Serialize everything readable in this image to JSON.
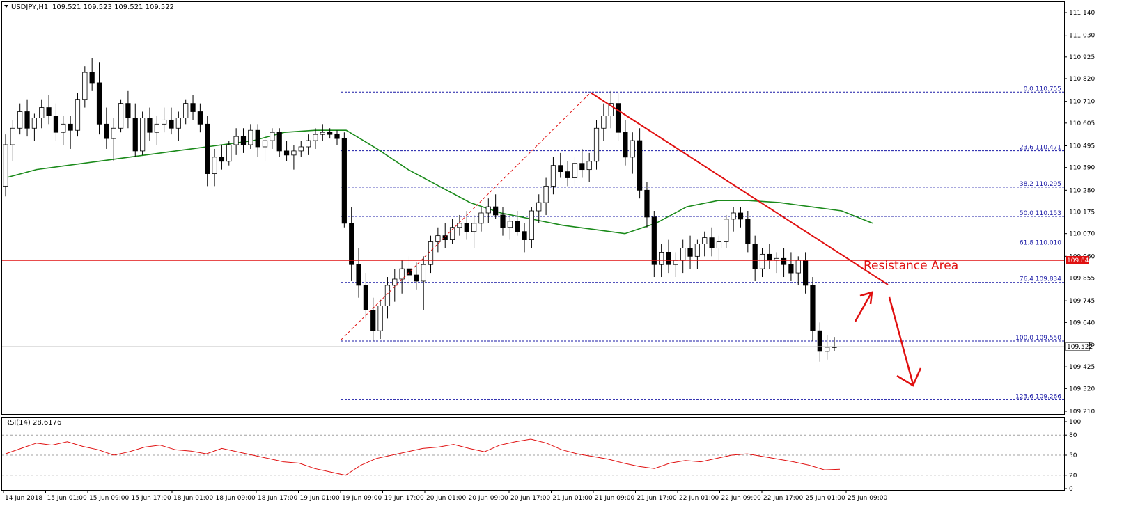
{
  "header": {
    "symbol": "USDJPY,H1",
    "quote": "109.521 109.523 109.521 109.522"
  },
  "rsi_header": {
    "label": "RSI(14) 28.6176"
  },
  "annotation": {
    "resistance_label": "Resistance Area"
  },
  "price_scale": {
    "ticks": [
      "111.140",
      "111.030",
      "110.925",
      "110.820",
      "110.710",
      "110.605",
      "110.495",
      "110.390",
      "110.280",
      "110.175",
      "110.070",
      "109.960",
      "109.855",
      "109.745",
      "109.640",
      "109.535",
      "109.425",
      "109.320",
      "109.210"
    ],
    "current_price": "109.522",
    "resistance_price": "109.844"
  },
  "rsi_scale": {
    "ticks": [
      "100",
      "80",
      "50",
      "20",
      "0"
    ]
  },
  "time_axis": {
    "labels": [
      "14 Jun 2018",
      "15 Jun 01:00",
      "15 Jun 09:00",
      "15 Jun 17:00",
      "18 Jun 01:00",
      "18 Jun 09:00",
      "18 Jun 17:00",
      "19 Jun 01:00",
      "19 Jun 09:00",
      "19 Jun 17:00",
      "20 Jun 01:00",
      "20 Jun 09:00",
      "20 Jun 17:00",
      "21 Jun 01:00",
      "21 Jun 09:00",
      "21 Jun 17:00",
      "22 Jun 01:00",
      "22 Jun 09:00",
      "22 Jun 17:00",
      "25 Jun 01:00",
      "25 Jun 09:00"
    ]
  },
  "fibonacci": {
    "levels": [
      {
        "label": "0.0 110.755",
        "price": 110.755
      },
      {
        "label": "23.6 110.471",
        "price": 110.471
      },
      {
        "label": "38.2 110.295",
        "price": 110.295
      },
      {
        "label": "50.0 110.153",
        "price": 110.153
      },
      {
        "label": "61.8 110.010",
        "price": 110.01
      },
      {
        "label": "76.4 109.834",
        "price": 109.834
      },
      {
        "label": "100.0 109.550",
        "price": 109.55
      },
      {
        "label": "123.6 109.266",
        "price": 109.266
      }
    ]
  },
  "colors": {
    "up": "#ffffff",
    "down": "#000000",
    "ma": "#1a8a1a",
    "fib": "#1a1aa6",
    "resistance": "#e01010",
    "rsi": "#e01010"
  },
  "chart_data": {
    "type": "candlestick",
    "symbol": "USDJPY,H1",
    "y_range": [
      109.21,
      111.14
    ],
    "rsi_range": [
      0,
      100
    ],
    "rsi_levels": [
      80,
      50,
      20
    ],
    "ohlc": [
      [
        110.3,
        110.55,
        110.25,
        110.5
      ],
      [
        110.5,
        110.62,
        110.42,
        110.58
      ],
      [
        110.58,
        110.7,
        110.55,
        110.66
      ],
      [
        110.66,
        110.72,
        110.54,
        110.58
      ],
      [
        110.58,
        110.65,
        110.52,
        110.63
      ],
      [
        110.63,
        110.72,
        110.58,
        110.68
      ],
      [
        110.68,
        110.74,
        110.6,
        110.64
      ],
      [
        110.64,
        110.7,
        110.52,
        110.56
      ],
      [
        110.56,
        110.64,
        110.5,
        110.6
      ],
      [
        110.6,
        110.64,
        110.48,
        110.57
      ],
      [
        110.57,
        110.75,
        110.54,
        110.72
      ],
      [
        110.72,
        110.88,
        110.68,
        110.85
      ],
      [
        110.85,
        110.92,
        110.76,
        110.8
      ],
      [
        110.8,
        110.9,
        110.55,
        110.6
      ],
      [
        110.6,
        110.68,
        110.48,
        110.53
      ],
      [
        110.53,
        110.63,
        110.42,
        110.58
      ],
      [
        110.58,
        110.72,
        110.56,
        110.7
      ],
      [
        110.7,
        110.76,
        110.58,
        110.63
      ],
      [
        110.63,
        110.7,
        110.44,
        110.47
      ],
      [
        110.47,
        110.66,
        110.45,
        110.63
      ],
      [
        110.63,
        110.68,
        110.52,
        110.56
      ],
      [
        110.56,
        110.64,
        110.5,
        110.6
      ],
      [
        110.6,
        110.68,
        110.56,
        110.62
      ],
      [
        110.62,
        110.68,
        110.55,
        110.58
      ],
      [
        110.58,
        110.66,
        110.52,
        110.63
      ],
      [
        110.63,
        110.72,
        110.6,
        110.7
      ],
      [
        110.7,
        110.74,
        110.62,
        110.66
      ],
      [
        110.66,
        110.7,
        110.56,
        110.6
      ],
      [
        110.6,
        110.64,
        110.3,
        110.36
      ],
      [
        110.36,
        110.48,
        110.3,
        110.44
      ],
      [
        110.44,
        110.5,
        110.38,
        110.42
      ],
      [
        110.42,
        110.52,
        110.4,
        110.5
      ],
      [
        110.5,
        110.58,
        110.45,
        110.54
      ],
      [
        110.54,
        110.58,
        110.46,
        110.5
      ],
      [
        110.5,
        110.6,
        110.48,
        110.57
      ],
      [
        110.57,
        110.6,
        110.44,
        110.49
      ],
      [
        110.49,
        110.56,
        110.42,
        110.52
      ],
      [
        110.52,
        110.58,
        110.48,
        110.56
      ],
      [
        110.56,
        110.58,
        110.44,
        110.47
      ],
      [
        110.47,
        110.52,
        110.42,
        110.45
      ],
      [
        110.45,
        110.5,
        110.38,
        110.47
      ],
      [
        110.47,
        110.52,
        110.44,
        110.49
      ],
      [
        110.49,
        110.55,
        110.45,
        110.52
      ],
      [
        110.52,
        110.58,
        110.48,
        110.55
      ],
      [
        110.55,
        110.6,
        110.52,
        110.56
      ],
      [
        110.56,
        110.58,
        110.53,
        110.55
      ],
      [
        110.55,
        110.57,
        110.5,
        110.53
      ],
      [
        110.53,
        110.56,
        110.1,
        110.12
      ],
      [
        110.12,
        110.2,
        109.84,
        109.92
      ],
      [
        109.92,
        110.0,
        109.76,
        109.82
      ],
      [
        109.82,
        109.88,
        109.66,
        109.7
      ],
      [
        109.7,
        109.76,
        109.55,
        109.6
      ],
      [
        109.6,
        109.75,
        109.56,
        109.72
      ],
      [
        109.72,
        109.86,
        109.66,
        109.82
      ],
      [
        109.82,
        109.9,
        109.74,
        109.85
      ],
      [
        109.85,
        109.94,
        109.78,
        109.9
      ],
      [
        109.9,
        109.96,
        109.82,
        109.87
      ],
      [
        109.87,
        109.93,
        109.8,
        109.84
      ],
      [
        109.84,
        109.96,
        109.7,
        109.92
      ],
      [
        109.92,
        110.06,
        109.88,
        110.03
      ],
      [
        110.03,
        110.1,
        109.98,
        110.06
      ],
      [
        110.06,
        110.12,
        110.0,
        110.04
      ],
      [
        110.04,
        110.14,
        110.02,
        110.1
      ],
      [
        110.1,
        110.16,
        110.06,
        110.12
      ],
      [
        110.12,
        110.18,
        110.04,
        110.08
      ],
      [
        110.08,
        110.16,
        110.0,
        110.12
      ],
      [
        110.12,
        110.2,
        110.08,
        110.17
      ],
      [
        110.17,
        110.24,
        110.12,
        110.2
      ],
      [
        110.2,
        110.26,
        110.14,
        110.16
      ],
      [
        110.16,
        110.2,
        110.06,
        110.1
      ],
      [
        110.1,
        110.16,
        110.04,
        110.13
      ],
      [
        110.13,
        110.18,
        110.06,
        110.08
      ],
      [
        110.08,
        110.12,
        109.98,
        110.04
      ],
      [
        110.04,
        110.2,
        110.0,
        110.18
      ],
      [
        110.18,
        110.26,
        110.12,
        110.22
      ],
      [
        110.22,
        110.34,
        110.16,
        110.3
      ],
      [
        110.3,
        110.44,
        110.26,
        110.4
      ],
      [
        110.4,
        110.46,
        110.34,
        110.37
      ],
      [
        110.37,
        110.42,
        110.3,
        110.34
      ],
      [
        110.34,
        110.44,
        110.3,
        110.41
      ],
      [
        110.41,
        110.48,
        110.34,
        110.38
      ],
      [
        110.38,
        110.46,
        110.32,
        110.42
      ],
      [
        110.42,
        110.62,
        110.38,
        110.58
      ],
      [
        110.58,
        110.7,
        110.52,
        110.64
      ],
      [
        110.64,
        110.76,
        110.58,
        110.7
      ],
      [
        110.7,
        110.75,
        110.52,
        110.56
      ],
      [
        110.56,
        110.62,
        110.4,
        110.44
      ],
      [
        110.44,
        110.56,
        110.36,
        110.52
      ],
      [
        110.52,
        110.58,
        110.24,
        110.28
      ],
      [
        110.28,
        110.32,
        110.1,
        110.15
      ],
      [
        110.15,
        110.18,
        109.86,
        109.92
      ],
      [
        109.92,
        110.02,
        109.86,
        109.98
      ],
      [
        109.98,
        110.04,
        109.88,
        109.92
      ],
      [
        109.92,
        109.98,
        109.86,
        109.94
      ],
      [
        109.94,
        110.04,
        109.88,
        110.0
      ],
      [
        110.0,
        110.06,
        109.9,
        109.96
      ],
      [
        109.96,
        110.04,
        109.9,
        110.02
      ],
      [
        110.02,
        110.08,
        109.96,
        110.05
      ],
      [
        110.05,
        110.1,
        109.96,
        110.0
      ],
      [
        110.0,
        110.06,
        109.94,
        110.03
      ],
      [
        110.03,
        110.16,
        110.0,
        110.14
      ],
      [
        110.14,
        110.2,
        110.08,
        110.17
      ],
      [
        110.17,
        110.2,
        110.1,
        110.14
      ],
      [
        110.14,
        110.18,
        109.98,
        110.02
      ],
      [
        110.02,
        110.06,
        109.84,
        109.9
      ],
      [
        109.9,
        110.0,
        109.86,
        109.97
      ],
      [
        109.97,
        110.02,
        109.9,
        109.94
      ],
      [
        109.94,
        109.98,
        109.88,
        109.95
      ],
      [
        109.95,
        110.0,
        109.86,
        109.92
      ],
      [
        109.92,
        109.98,
        109.84,
        109.88
      ],
      [
        109.88,
        109.96,
        109.82,
        109.94
      ],
      [
        109.94,
        109.98,
        109.78,
        109.82
      ],
      [
        109.82,
        109.86,
        109.55,
        109.6
      ],
      [
        109.6,
        109.64,
        109.45,
        109.5
      ],
      [
        109.5,
        109.58,
        109.46,
        109.52
      ],
      [
        109.52,
        109.57,
        109.5,
        109.522
      ]
    ],
    "ma": [
      110.34,
      110.38,
      110.4,
      110.42,
      110.44,
      110.46,
      110.48,
      110.5,
      110.52,
      110.56,
      110.57,
      110.57,
      110.48,
      110.38,
      110.3,
      110.22,
      110.17,
      110.14,
      110.11,
      110.09,
      110.07,
      110.12,
      110.2,
      110.23,
      110.23,
      110.22,
      110.2,
      110.18,
      110.12
    ],
    "rsi": [
      52,
      60,
      68,
      65,
      70,
      63,
      58,
      50,
      55,
      62,
      65,
      58,
      56,
      52,
      60,
      55,
      50,
      45,
      40,
      38,
      30,
      25,
      20,
      35,
      45,
      50,
      55,
      60,
      62,
      66,
      60,
      55,
      65,
      70,
      74,
      68,
      58,
      52,
      48,
      44,
      38,
      33,
      30,
      38,
      42,
      40,
      45,
      50,
      52,
      48,
      44,
      40,
      35,
      28,
      29
    ]
  }
}
